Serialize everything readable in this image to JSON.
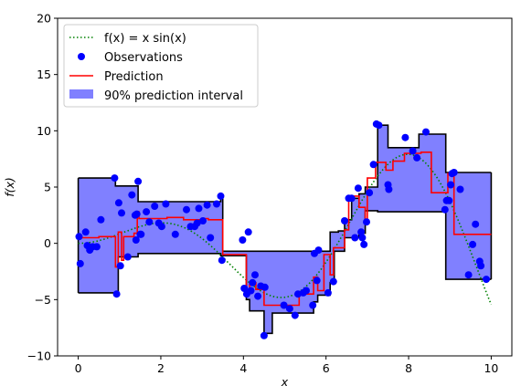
{
  "chart_data": {
    "type": "line",
    "title": "",
    "xlabel": "x",
    "ylabel": "f(x)",
    "xlim": [
      -0.5,
      10.5
    ],
    "ylim": [
      -10,
      20
    ],
    "xticks": [
      0,
      2,
      4,
      6,
      8,
      10
    ],
    "yticks": [
      -10,
      -5,
      0,
      5,
      10,
      15,
      20
    ],
    "grid": false,
    "legend_position": "top-left",
    "legend": [
      {
        "label": "f(x) = x sin(x)",
        "style": "dotted-line",
        "color": "#008000"
      },
      {
        "label": "Observations",
        "style": "marker",
        "color": "#0000ff"
      },
      {
        "label": "Prediction",
        "style": "line",
        "color": "#ff0000"
      },
      {
        "label": "90% prediction interval",
        "style": "fill",
        "color": "#8080ff"
      }
    ],
    "true_function": {
      "name": "f(x) = x sin(x)",
      "formula": "x*sin(x)",
      "domain": [
        0,
        10
      ],
      "color": "#008000"
    },
    "observations": {
      "name": "Observations",
      "color": "#0000ff",
      "x": [
        0.02,
        0.05,
        0.18,
        0.22,
        0.28,
        0.35,
        0.45,
        0.55,
        0.88,
        0.93,
        0.98,
        1.02,
        1.05,
        1.2,
        1.3,
        1.38,
        1.4,
        1.42,
        1.45,
        1.5,
        1.52,
        1.65,
        1.72,
        1.85,
        1.95,
        2.02,
        2.12,
        2.35,
        2.62,
        2.72,
        2.82,
        2.88,
        2.92,
        3.02,
        3.12,
        3.2,
        3.35,
        3.45,
        3.48,
        3.98,
        4.02,
        4.08,
        4.12,
        4.18,
        4.22,
        4.28,
        4.35,
        4.42,
        4.5,
        4.52,
        4.98,
        5.12,
        5.25,
        5.32,
        5.45,
        5.52,
        5.68,
        5.72,
        5.78,
        5.82,
        6.05,
        6.18,
        6.45,
        6.55,
        6.62,
        6.7,
        6.78,
        6.85,
        6.88,
        6.92,
        6.98,
        7.05,
        7.15,
        7.22,
        7.28,
        7.5,
        7.52,
        7.92,
        8.1,
        8.2,
        8.42,
        8.88,
        8.92,
        8.98,
        9.02,
        9.05,
        9.1,
        9.25,
        9.45,
        9.55,
        9.62,
        9.72,
        9.75,
        9.88
      ],
      "y": [
        0.6,
        -1.8,
        1.0,
        -0.2,
        -0.6,
        -0.3,
        -0.3,
        2.1,
        5.8,
        -4.5,
        3.6,
        -2.0,
        2.7,
        -1.2,
        4.3,
        2.5,
        0.3,
        2.6,
        5.5,
        0.8,
        0.8,
        2.8,
        1.9,
        3.3,
        1.8,
        1.5,
        3.5,
        0.8,
        3.0,
        1.5,
        1.5,
        1.8,
        3.1,
        2.0,
        3.4,
        0.5,
        3.5,
        4.2,
        -1.5,
        0.3,
        -4.0,
        -4.5,
        1.0,
        -4.2,
        -3.5,
        -2.8,
        -4.7,
        -3.8,
        -8.2,
        -3.9,
        -5.5,
        -5.8,
        -6.4,
        -4.5,
        -4.4,
        -4.2,
        -5.5,
        -0.9,
        -3.3,
        -0.6,
        -4.4,
        -3.4,
        2.0,
        4.0,
        4.0,
        0.5,
        4.9,
        1.0,
        0.5,
        -0.1,
        1.9,
        4.5,
        7.0,
        10.6,
        10.5,
        5.2,
        4.8,
        9.4,
        8.2,
        7.6,
        9.9,
        3.0,
        3.8,
        3.8,
        5.2,
        6.2,
        6.3,
        4.8,
        -2.8,
        -0.1,
        1.7,
        -1.6,
        -2.0,
        -3.2
      ]
    },
    "prediction": {
      "name": "Prediction",
      "color": "#ff0000",
      "steps": [
        [
          0,
          0.5
        ],
        [
          0.5,
          0.6
        ],
        [
          0.9,
          -2.1
        ],
        [
          0.97,
          1.0
        ],
        [
          1.05,
          -1.5
        ],
        [
          1.1,
          0.6
        ],
        [
          1.35,
          0.9
        ],
        [
          1.43,
          2.8
        ],
        [
          1.47,
          2.2
        ],
        [
          2.15,
          2.3
        ],
        [
          2.55,
          2.1
        ],
        [
          3.05,
          2.2
        ],
        [
          3.15,
          2.1
        ],
        [
          3.5,
          -1.0
        ],
        [
          4.07,
          -4.5
        ],
        [
          4.15,
          -3.5
        ],
        [
          4.3,
          -4.1
        ],
        [
          4.5,
          -5.5
        ],
        [
          5.35,
          -4.5
        ],
        [
          5.7,
          -3.0
        ],
        [
          5.8,
          -4.2
        ],
        [
          5.95,
          -1.0
        ],
        [
          6.1,
          -2.8
        ],
        [
          6.18,
          -0.4
        ],
        [
          6.45,
          1.2
        ],
        [
          6.55,
          3.8
        ],
        [
          6.65,
          4.2
        ],
        [
          6.8,
          3.2
        ],
        [
          6.95,
          1.8
        ],
        [
          7.0,
          5.8
        ],
        [
          7.2,
          7.2
        ],
        [
          7.45,
          6.5
        ],
        [
          7.62,
          7.3
        ],
        [
          7.9,
          8.0
        ],
        [
          8.3,
          8.1
        ],
        [
          8.55,
          4.5
        ],
        [
          8.95,
          6.2
        ],
        [
          9.1,
          0.8
        ],
        [
          10.0,
          0.8
        ]
      ]
    },
    "interval": {
      "name": "90% prediction interval",
      "color": "#8080ff",
      "edge_color": "#000000",
      "upper_steps": [
        [
          0,
          5.8
        ],
        [
          0.9,
          5.1
        ],
        [
          1.45,
          3.7
        ],
        [
          3.45,
          4.2
        ],
        [
          3.5,
          -0.7
        ],
        [
          6.1,
          1.0
        ],
        [
          6.3,
          1.1
        ],
        [
          6.45,
          2.1
        ],
        [
          6.62,
          4.0
        ],
        [
          6.8,
          4.4
        ],
        [
          6.95,
          5.0
        ],
        [
          7.25,
          10.5
        ],
        [
          7.5,
          8.5
        ],
        [
          8.25,
          9.7
        ],
        [
          8.9,
          6.3
        ],
        [
          10.0,
          6.3
        ]
      ],
      "lower_steps": [
        [
          0,
          -4.4
        ],
        [
          0.9,
          -4.4
        ],
        [
          0.97,
          -1.2
        ],
        [
          1.45,
          -0.9
        ],
        [
          3.45,
          -1.1
        ],
        [
          4.07,
          -5.0
        ],
        [
          4.15,
          -6.0
        ],
        [
          4.5,
          -8.0
        ],
        [
          4.7,
          -6.2
        ],
        [
          5.5,
          -6.2
        ],
        [
          5.7,
          -5.2
        ],
        [
          5.8,
          -4.6
        ],
        [
          6.1,
          -3.5
        ],
        [
          6.2,
          -0.7
        ],
        [
          6.45,
          0.5
        ],
        [
          6.8,
          0.9
        ],
        [
          6.95,
          2.9
        ],
        [
          7.25,
          2.8
        ],
        [
          8.9,
          -3.2
        ],
        [
          10.0,
          -3.2
        ]
      ]
    }
  }
}
